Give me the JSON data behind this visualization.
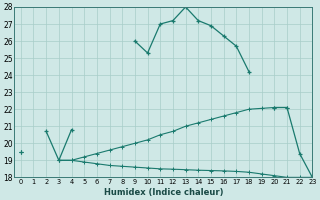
{
  "xlabel": "Humidex (Indice chaleur)",
  "x": [
    0,
    1,
    2,
    3,
    4,
    5,
    6,
    7,
    8,
    9,
    10,
    11,
    12,
    13,
    14,
    15,
    16,
    17,
    18,
    19,
    20,
    21,
    22,
    23
  ],
  "y_main": [
    19.5,
    null,
    20.7,
    19.0,
    20.8,
    null,
    null,
    null,
    null,
    26.0,
    25.3,
    27.0,
    27.2,
    28.0,
    27.2,
    26.9,
    26.3,
    25.7,
    24.2,
    null,
    22.1,
    22.1,
    19.4,
    18.0
  ],
  "y_top": [
    19.5,
    null,
    null,
    19.0,
    19.0,
    19.2,
    19.4,
    19.6,
    19.8,
    20.0,
    20.2,
    20.5,
    20.7,
    21.0,
    21.2,
    21.4,
    21.6,
    21.8,
    22.0,
    22.05,
    22.1,
    22.1,
    null,
    null
  ],
  "y_bot": [
    19.5,
    null,
    null,
    19.0,
    19.0,
    18.9,
    18.8,
    18.7,
    18.65,
    18.6,
    18.55,
    18.5,
    18.48,
    18.45,
    18.42,
    18.4,
    18.38,
    18.35,
    18.3,
    18.2,
    18.1,
    18.0,
    18.0,
    18.0
  ],
  "line_color": "#1a7a6e",
  "background_color": "#cfe8e6",
  "grid_color": "#a8cdc9",
  "ylim": [
    18,
    28
  ],
  "xlim": [
    -0.5,
    23
  ],
  "yticks": [
    18,
    19,
    20,
    21,
    22,
    23,
    24,
    25,
    26,
    27,
    28
  ],
  "xticks": [
    0,
    1,
    2,
    3,
    4,
    5,
    6,
    7,
    8,
    9,
    10,
    11,
    12,
    13,
    14,
    15,
    16,
    17,
    18,
    19,
    20,
    21,
    22,
    23
  ]
}
